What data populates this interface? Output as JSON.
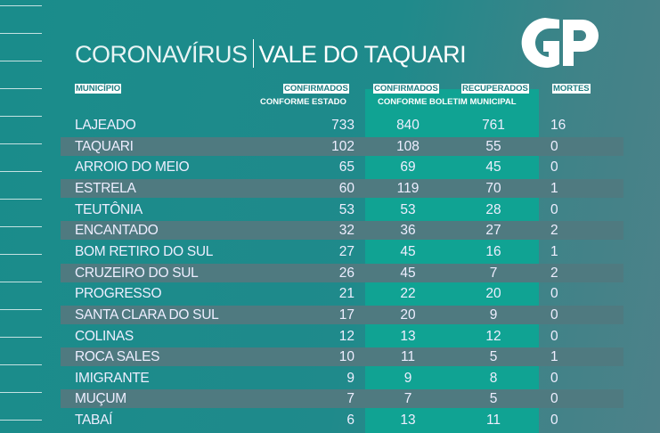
{
  "title": {
    "left": "CORONAVÍRUS",
    "right": "VALE DO TAQUARI"
  },
  "logo": "GP",
  "headers": {
    "municipio": "MUNICÍPIO",
    "confirmados_estado": "CONFIRMADOS",
    "conforme_estado": "CONFORME ESTADO",
    "confirmados_municipal": "CONFIRMADOS",
    "recuperados": "RECUPERADOS",
    "conforme_municipal": "CONFORME BOLETIM MUNICIPAL",
    "mortes": "MORTES"
  },
  "colors": {
    "background": "#1a8c8b",
    "stripe": "#4f7a80",
    "highlight": "#10a393"
  },
  "rows": [
    {
      "name": "LAJEADO",
      "estado": "733",
      "municipal": "840",
      "recuperados": "761",
      "mortes": "16"
    },
    {
      "name": "TAQUARI",
      "estado": "102",
      "municipal": "108",
      "recuperados": "55",
      "mortes": "0"
    },
    {
      "name": "ARROIO DO MEIO",
      "estado": "65",
      "municipal": "69",
      "recuperados": "45",
      "mortes": "0"
    },
    {
      "name": "ESTRELA",
      "estado": "60",
      "municipal": "119",
      "recuperados": "70",
      "mortes": "1"
    },
    {
      "name": "TEUTÔNIA",
      "estado": "53",
      "municipal": "53",
      "recuperados": "28",
      "mortes": "0"
    },
    {
      "name": "ENCANTADO",
      "estado": "32",
      "municipal": "36",
      "recuperados": "27",
      "mortes": "2"
    },
    {
      "name": "BOM RETIRO DO SUL",
      "estado": "27",
      "municipal": "45",
      "recuperados": "16",
      "mortes": "1"
    },
    {
      "name": "CRUZEIRO DO SUL",
      "estado": "26",
      "municipal": "45",
      "recuperados": "7",
      "mortes": "2"
    },
    {
      "name": "PROGRESSO",
      "estado": "21",
      "municipal": "22",
      "recuperados": "20",
      "mortes": "0"
    },
    {
      "name": "SANTA CLARA DO SUL",
      "estado": "17",
      "municipal": "20",
      "recuperados": "9",
      "mortes": "0"
    },
    {
      "name": "COLINAS",
      "estado": "12",
      "municipal": "13",
      "recuperados": "12",
      "mortes": "0"
    },
    {
      "name": "ROCA SALES",
      "estado": "10",
      "municipal": "11",
      "recuperados": "5",
      "mortes": "1"
    },
    {
      "name": "IMIGRANTE",
      "estado": "9",
      "municipal": "9",
      "recuperados": "8",
      "mortes": "0"
    },
    {
      "name": "MUÇUM",
      "estado": "7",
      "municipal": "7",
      "recuperados": "5",
      "mortes": "0"
    },
    {
      "name": "TABAÍ",
      "estado": "6",
      "municipal": "13",
      "recuperados": "11",
      "mortes": "0"
    }
  ]
}
